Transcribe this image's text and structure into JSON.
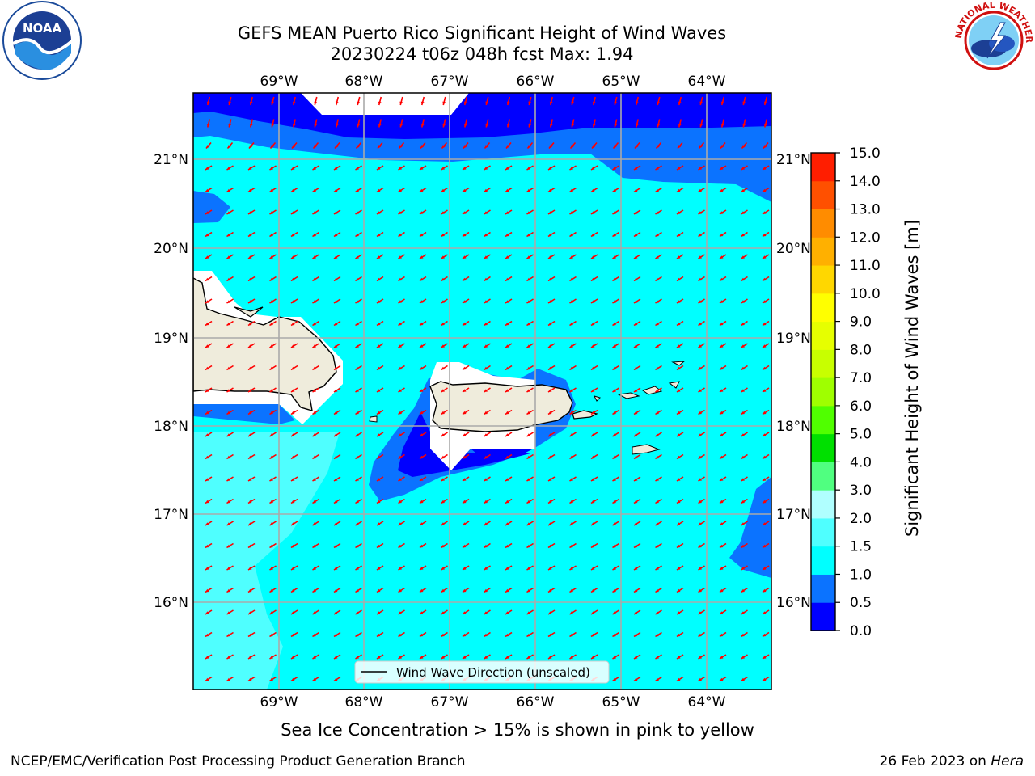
{
  "title_line1": "GEFS MEAN Puerto Rico Significant Height of Wind Waves",
  "title_line2": "20230224 t06z 048h fcst   Max: 1.94",
  "logos": {
    "left": "NOAA",
    "right": "NATIONAL WEATHER SERVICE"
  },
  "map": {
    "lon_labels": [
      "69°W",
      "68°W",
      "67°W",
      "66°W",
      "65°W",
      "64°W"
    ],
    "lat_labels": [
      "21°N",
      "20°N",
      "19°N",
      "18°N",
      "17°N",
      "16°N"
    ],
    "legend_label": "Wind Wave Direction (unscaled)",
    "arrow_color": "#ff0000",
    "land_color": "#efecdc"
  },
  "colorbar": {
    "label": "Significant Height of Wind Waves [m]",
    "ticks": [
      "0.0",
      "0.5",
      "1.0",
      "1.5",
      "2.0",
      "3.0",
      "4.0",
      "5.0",
      "6.0",
      "7.0",
      "8.0",
      "9.0",
      "10.0",
      "11.0",
      "12.0",
      "13.0",
      "14.0",
      "15.0"
    ],
    "colors": [
      "#0000ff",
      "#0b73ff",
      "#00ffff",
      "#4fffff",
      "#b0ffff",
      "#50ff80",
      "#00e000",
      "#50ff00",
      "#9fff00",
      "#c8ff00",
      "#e6ff00",
      "#ffff00",
      "#ffd700",
      "#ffb000",
      "#ff8c00",
      "#ff5000",
      "#ff1e00"
    ]
  },
  "subtitle": "Sea Ice Concentration > 15% is shown in pink to yellow",
  "footer_left": "NCEP/EMC/Verification Post Processing Product Generation Branch",
  "footer_date": "26 Feb 2023 on ",
  "footer_host": "Hera"
}
